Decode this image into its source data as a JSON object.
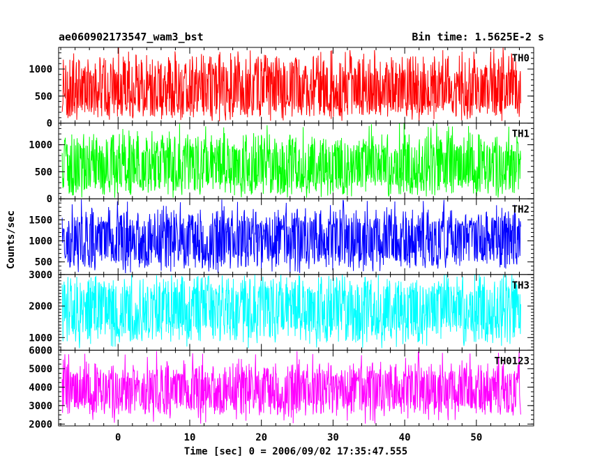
{
  "chart_data": {
    "type": "line",
    "title": "ae060902173547_wam3_bst",
    "subtitle": "Bin time: 1.5625E-2 s",
    "xlabel": "Time [sec] 0 = 2006/09/02 17:35:47.555",
    "ylabel": "Counts/sec",
    "xlim": [
      -8.3,
      58
    ],
    "x_ticks": [
      0,
      10,
      20,
      30,
      40,
      50
    ],
    "x_range": [
      -7.8,
      56.2
    ],
    "grid": false,
    "panels": [
      {
        "name": "TH0",
        "color": "#ff0000",
        "ylim": [
          0,
          1400
        ],
        "yticks": [
          0,
          500,
          1000
        ],
        "mean": 600,
        "low": 120,
        "high": 1250,
        "max": 1400
      },
      {
        "name": "TH1",
        "color": "#00ff00",
        "ylim": [
          0,
          1400
        ],
        "yticks": [
          0,
          500,
          1000
        ],
        "mean": 600,
        "low": 80,
        "high": 1200,
        "max": 1400
      },
      {
        "name": "TH2",
        "color": "#0000ff",
        "ylim": [
          200,
          2000
        ],
        "yticks": [
          500,
          1000,
          1500
        ],
        "mean": 1000,
        "low": 350,
        "high": 1750,
        "max": 2000
      },
      {
        "name": "TH3",
        "color": "#00ffff",
        "ylim": [
          600,
          3000
        ],
        "yticks": [
          1000,
          2000,
          3000
        ],
        "mean": 1900,
        "low": 850,
        "high": 2950,
        "max": 3000
      },
      {
        "name": "TH0123",
        "color": "#ff00ff",
        "ylim": [
          1900,
          6000
        ],
        "yticks": [
          2000,
          3000,
          4000,
          5000,
          6000
        ],
        "mean": 3800,
        "low": 2500,
        "high": 5300,
        "max": 6000
      }
    ]
  }
}
